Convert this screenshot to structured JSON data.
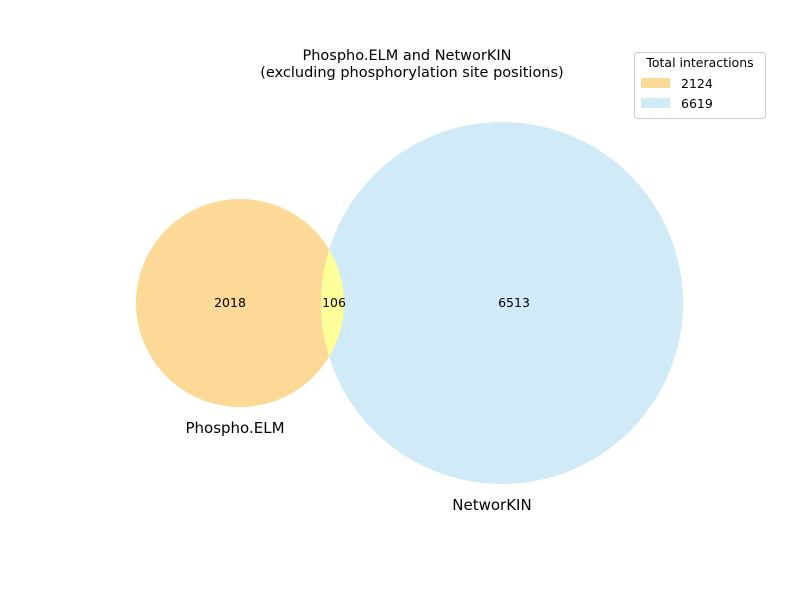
{
  "title": {
    "line1": "Phospho.ELM and NetworKIN",
    "line2": "(excluding phosphorylation site positions)"
  },
  "sets": [
    {
      "name": "Phospho.ELM",
      "total": 2124,
      "color": "#fdd998"
    },
    {
      "name": "NetworKIN",
      "total": 6619,
      "color": "#d1eaf7"
    }
  ],
  "intersection_color": "#ffff99",
  "regions": {
    "only_phospho_elm": "2018",
    "intersection": "106",
    "only_networkin": "6513"
  },
  "legend": {
    "title": "Total interactions",
    "entries": [
      {
        "label": "2124",
        "color": "#fdd998"
      },
      {
        "label": "6619",
        "color": "#d1eaf7"
      }
    ]
  }
}
